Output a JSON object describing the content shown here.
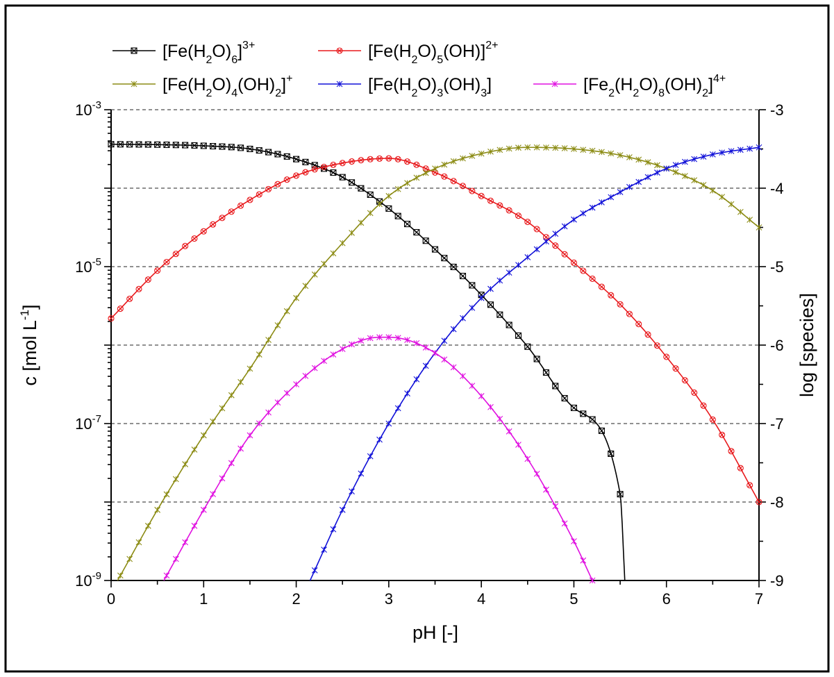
{
  "chart_data": {
    "type": "line",
    "xlabel": "pH [-]",
    "ylabel_left": {
      "base": "c [mol L",
      "sup": "-1",
      "end": "]"
    },
    "ylabel_right": "log [species]",
    "xlim": [
      0,
      7
    ],
    "ylim": [
      -9,
      -3
    ],
    "x_scale": "linear",
    "y_scale": "log10 (left axis shows concentration, right axis shows log value)",
    "grid": "horizontal dashed at each decade",
    "x_ticks": [
      "0",
      "1",
      "2",
      "3",
      "4",
      "5",
      "6",
      "7"
    ],
    "left_ticks": [
      {
        "value": -3,
        "base": "10",
        "exp": "-3"
      },
      {
        "value": -5,
        "base": "10",
        "exp": "-5"
      },
      {
        "value": -7,
        "base": "10",
        "exp": "-7"
      },
      {
        "value": -9,
        "base": "10",
        "exp": "-9"
      }
    ],
    "right_ticks": [
      {
        "value": -3,
        "label": "-3"
      },
      {
        "value": -4,
        "label": "-4"
      },
      {
        "value": -5,
        "label": "-5"
      },
      {
        "value": -6,
        "label": "-6"
      },
      {
        "value": -7,
        "label": "-7"
      },
      {
        "value": -8,
        "label": "-8"
      },
      {
        "value": -9,
        "label": "-9"
      }
    ],
    "legend_placement": "top",
    "series": [
      {
        "id": "s1",
        "legend": [
          {
            "t": "[Fe(H"
          },
          {
            "t": "2",
            "s": "sub"
          },
          {
            "t": "O)"
          },
          {
            "t": "6",
            "s": "sub"
          },
          {
            "t": "]"
          },
          {
            "t": "3+",
            "s": "sup"
          }
        ],
        "color": "#000000",
        "marker": "square-x",
        "points": [
          [
            0,
            -3.44
          ],
          [
            0.5,
            -3.445
          ],
          [
            1,
            -3.46
          ],
          [
            1.5,
            -3.5
          ],
          [
            2,
            -3.63
          ],
          [
            2.5,
            -3.86
          ],
          [
            3,
            -4.26
          ],
          [
            3.5,
            -4.78
          ],
          [
            4,
            -5.36
          ],
          [
            4.5,
            -6.02
          ],
          [
            5,
            -6.8
          ],
          [
            5.5,
            -7.9
          ],
          [
            5.55,
            -9.0
          ]
        ]
      },
      {
        "id": "s2",
        "legend": [
          {
            "t": "[Fe(H"
          },
          {
            "t": "2",
            "s": "sub"
          },
          {
            "t": "O)"
          },
          {
            "t": "5",
            "s": "sub"
          },
          {
            "t": "(OH)]"
          },
          {
            "t": "2+",
            "s": "sup"
          }
        ],
        "color": "#e8191c",
        "marker": "circle-x",
        "points": [
          [
            0,
            -5.66
          ],
          [
            0.5,
            -5.05
          ],
          [
            1,
            -4.55
          ],
          [
            1.5,
            -4.15
          ],
          [
            2,
            -3.84
          ],
          [
            2.5,
            -3.68
          ],
          [
            3,
            -3.62
          ],
          [
            3.5,
            -3.8
          ],
          [
            4,
            -4.1
          ],
          [
            4.5,
            -4.43
          ],
          [
            5,
            -4.95
          ],
          [
            5.5,
            -5.48
          ],
          [
            6,
            -6.15
          ],
          [
            6.5,
            -6.95
          ],
          [
            7,
            -8.0
          ]
        ]
      },
      {
        "id": "s3",
        "legend": [
          {
            "t": "[Fe(H"
          },
          {
            "t": "2",
            "s": "sub"
          },
          {
            "t": "O)"
          },
          {
            "t": "4",
            "s": "sub"
          },
          {
            "t": "(OH)"
          },
          {
            "t": "2",
            "s": "sub"
          },
          {
            "t": "]"
          },
          {
            "t": "+",
            "s": "sup"
          }
        ],
        "color": "#8b8b13",
        "marker": "star",
        "points": [
          [
            0.07,
            -9.0
          ],
          [
            0.5,
            -8.1
          ],
          [
            1,
            -7.15
          ],
          [
            1.5,
            -6.3
          ],
          [
            2,
            -5.4
          ],
          [
            2.5,
            -4.7
          ],
          [
            3,
            -4.1
          ],
          [
            3.5,
            -3.75
          ],
          [
            4,
            -3.56
          ],
          [
            4.5,
            -3.48
          ],
          [
            5,
            -3.5
          ],
          [
            5.5,
            -3.58
          ],
          [
            6,
            -3.75
          ],
          [
            6.5,
            -4.03
          ],
          [
            7,
            -4.5
          ]
        ]
      },
      {
        "id": "s4",
        "legend": [
          {
            "t": "[Fe(H"
          },
          {
            "t": "2",
            "s": "sub"
          },
          {
            "t": "O)"
          },
          {
            "t": "3",
            "s": "sub"
          },
          {
            "t": "(OH)"
          },
          {
            "t": "3",
            "s": "sub"
          },
          {
            "t": "]"
          }
        ],
        "color": "#1010d8",
        "marker": "star",
        "points": [
          [
            2.15,
            -9.0
          ],
          [
            2.5,
            -8.1
          ],
          [
            3,
            -7.0
          ],
          [
            3.5,
            -6.1
          ],
          [
            4,
            -5.4
          ],
          [
            4.5,
            -4.88
          ],
          [
            5,
            -4.4
          ],
          [
            5.5,
            -4.05
          ],
          [
            6,
            -3.75
          ],
          [
            6.5,
            -3.57
          ],
          [
            7,
            -3.48
          ]
        ]
      },
      {
        "id": "s5",
        "legend": [
          {
            "t": "[Fe"
          },
          {
            "t": "2",
            "s": "sub"
          },
          {
            "t": "(H"
          },
          {
            "t": "2",
            "s": "sub"
          },
          {
            "t": "O)"
          },
          {
            "t": "8",
            "s": "sub"
          },
          {
            "t": "(OH)"
          },
          {
            "t": "2",
            "s": "sub"
          },
          {
            "t": "]"
          },
          {
            "t": "4+",
            "s": "sup"
          }
        ],
        "color": "#e010e0",
        "marker": "star",
        "points": [
          [
            0.57,
            -9.0
          ],
          [
            1,
            -8.1
          ],
          [
            1.5,
            -7.15
          ],
          [
            2,
            -6.5
          ],
          [
            2.5,
            -6.05
          ],
          [
            2.9,
            -5.9
          ],
          [
            3,
            -5.9
          ],
          [
            3.5,
            -6.1
          ],
          [
            4,
            -6.65
          ],
          [
            4.5,
            -7.45
          ],
          [
            5,
            -8.5
          ],
          [
            5.2,
            -9.0
          ]
        ]
      }
    ]
  }
}
